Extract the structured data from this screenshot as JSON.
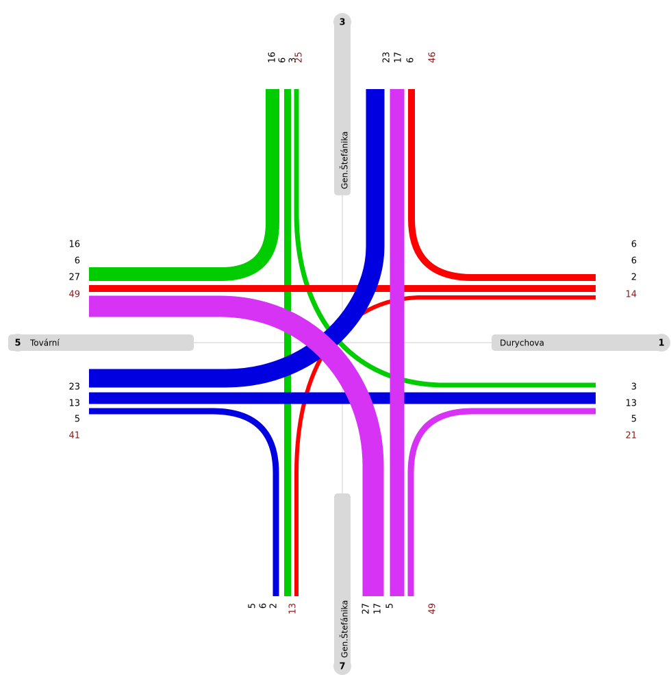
{
  "north": {
    "number": 3,
    "name": "Gen.Štefánika",
    "color": "#00cc00",
    "left": {
      "values": [
        16,
        6,
        3
      ],
      "total": 25
    },
    "right": {
      "values": [
        23,
        17,
        6
      ],
      "total": 46
    }
  },
  "east": {
    "number": 1,
    "name": "Durychova",
    "color": "#ff0000",
    "upper": {
      "values": [
        6,
        6,
        2
      ],
      "total": 14
    },
    "lower": {
      "values": [
        3,
        13,
        5
      ],
      "total": 21
    }
  },
  "south": {
    "number": 7,
    "name": "Gen.Štefánika",
    "color": "#d633f5",
    "left": {
      "values": [
        5,
        6,
        2
      ],
      "total": 13
    },
    "right": {
      "values": [
        27,
        17,
        5
      ],
      "total": 49
    }
  },
  "west": {
    "number": 5,
    "name": "Tovární",
    "color": "#0000e0",
    "upper": {
      "values": [
        16,
        6,
        27
      ],
      "total": 49
    },
    "lower": {
      "values": [
        23,
        13,
        5
      ],
      "total": 41
    }
  }
}
